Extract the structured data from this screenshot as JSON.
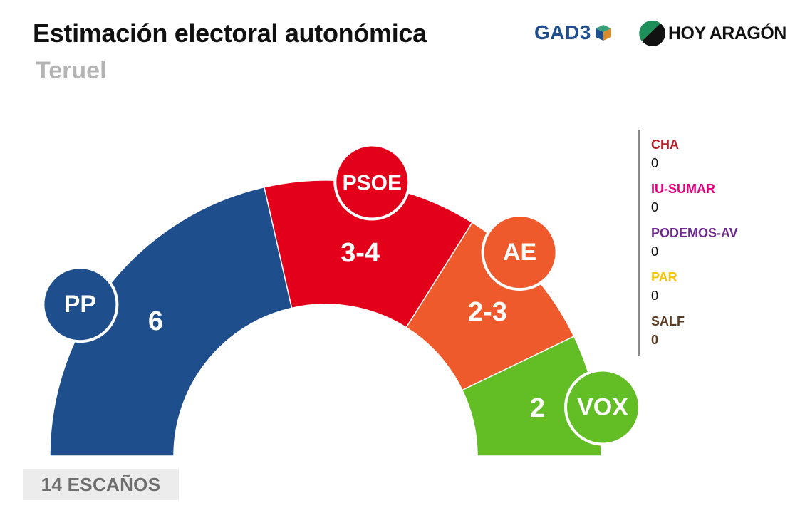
{
  "header": {
    "title": "Estimación electoral autonómica",
    "subtitle": "Teruel"
  },
  "logos": {
    "gad3": "GAD3",
    "hoy_aragon": "HOY ARAGÓN"
  },
  "chart_data": {
    "type": "parliament-semicircle",
    "total_seats": 14,
    "total_label": "14 ESCAÑOS",
    "parties": [
      {
        "name": "PP",
        "label": "6",
        "share": 6,
        "color": "#1f4e8c"
      },
      {
        "name": "PSOE",
        "label": "3-4",
        "share": 3.5,
        "color": "#e3001b"
      },
      {
        "name": "AE",
        "label": "2-3",
        "share": 2.5,
        "color": "#ee5a2b"
      },
      {
        "name": "VOX",
        "label": "2",
        "share": 2,
        "color": "#63be25"
      }
    ],
    "others": [
      {
        "name": "CHA",
        "value": "0",
        "color": "#b5232a"
      },
      {
        "name": "IU-SUMAR",
        "value": "0",
        "color": "#e6007e"
      },
      {
        "name": "PODEMOS-AV",
        "value": "0",
        "color": "#6c2b8e"
      },
      {
        "name": "PAR",
        "value": "0",
        "color": "#f2c500"
      },
      {
        "name": "SALF",
        "value": "0",
        "color": "#5a3a22"
      }
    ]
  }
}
